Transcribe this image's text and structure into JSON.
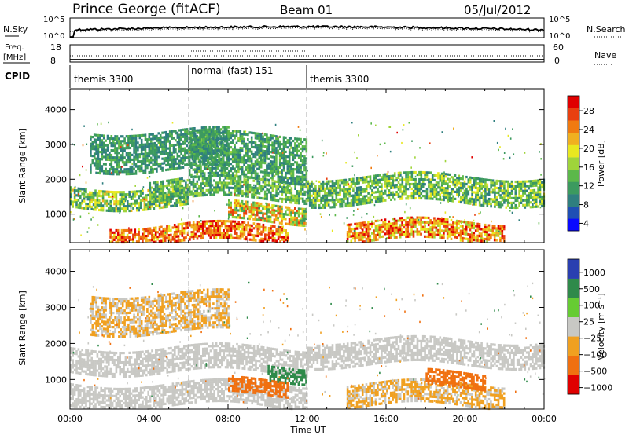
{
  "header": {
    "station": "Prince George (fitACF)",
    "beam": "Beam 01",
    "date": "05/Jul/2012"
  },
  "top_panel": {
    "left_label": "N.Sky",
    "right_label": "N.Search",
    "y_top_tick": "10^5",
    "y_bottom_tick": "10^0"
  },
  "freq_panel": {
    "left_label_1": "Freq.",
    "left_label_2": "[MHz]",
    "left_ticks": [
      "18",
      "8"
    ],
    "right_label": "Nave",
    "right_ticks": [
      "60",
      "0"
    ]
  },
  "cpid_panel": {
    "label": "CPID",
    "segments": [
      {
        "text": "themis 3300"
      },
      {
        "text": "normal (fast) 151"
      },
      {
        "text": "themis 3300"
      }
    ]
  },
  "x_axis": {
    "title": "Time UT",
    "ticks": [
      "00:00",
      "04:00",
      "08:00",
      "12:00",
      "16:00",
      "20:00",
      "00:00"
    ]
  },
  "power_panel": {
    "ylabel": "Slant Range [km]",
    "yticks": [
      "4000",
      "3000",
      "2000",
      "1000"
    ],
    "colorbar_label": "Power [dB]",
    "colorbar_ticks": [
      "28",
      "24",
      "20",
      "16",
      "12",
      "8",
      "4"
    ],
    "colors": [
      "#0a0aff",
      "#1f4fb4",
      "#2f7f7f",
      "#3c9a5f",
      "#5cb84a",
      "#9fd43a",
      "#e8e820",
      "#f0b020",
      "#f07a10",
      "#e84010",
      "#e00000"
    ]
  },
  "velocity_panel": {
    "ylabel": "Slant Range [km]",
    "yticks": [
      "4000",
      "3000",
      "2000",
      "1000"
    ],
    "colorbar_label": "Velocity [m s⁻¹]",
    "colorbar_ticks": [
      "1000",
      "500",
      "100",
      "25",
      "−25",
      "−100",
      "−500",
      "−1000"
    ],
    "colors": [
      "#2a3fb0",
      "#2f8a4a",
      "#66cc33",
      "#c8c8c4",
      "#f0a020",
      "#f07010",
      "#e00000"
    ]
  },
  "chart_data": [
    {
      "type": "heatmap",
      "title": "Power [dB]",
      "xlabel": "Time UT",
      "ylabel": "Slant Range [km]",
      "xlim": [
        0,
        24
      ],
      "ylim": [
        180,
        4600
      ],
      "clim": [
        0,
        30
      ],
      "bands": [
        {
          "t": [
            0,
            6
          ],
          "range": [
            1200,
            1800
          ],
          "power": [
            6,
            20
          ]
        },
        {
          "t": [
            4,
            12
          ],
          "range": [
            1400,
            2000
          ],
          "power": [
            6,
            16
          ]
        },
        {
          "t": [
            6,
            12
          ],
          "range": [
            2000,
            3300
          ],
          "power": [
            6,
            14
          ]
        },
        {
          "t": [
            2,
            11
          ],
          "range": [
            200,
            700
          ],
          "power": [
            18,
            30
          ]
        },
        {
          "t": [
            8,
            12
          ],
          "range": [
            800,
            1300
          ],
          "power": [
            8,
            26
          ]
        },
        {
          "t": [
            12,
            24
          ],
          "range": [
            1300,
            2100
          ],
          "power": [
            6,
            18
          ]
        },
        {
          "t": [
            14,
            22
          ],
          "range": [
            200,
            800
          ],
          "power": [
            14,
            30
          ]
        },
        {
          "t": [
            1,
            8
          ],
          "range": [
            2300,
            3400
          ],
          "power": [
            6,
            12
          ]
        }
      ]
    },
    {
      "type": "heatmap",
      "title": "Velocity",
      "xlabel": "Time UT",
      "ylabel": "Slant Range [km]",
      "xlim": [
        0,
        24
      ],
      "ylim": [
        180,
        4600
      ],
      "clim": [
        -1000,
        1000
      ],
      "bands": [
        {
          "t": [
            0,
            12
          ],
          "range": [
            1200,
            1900
          ],
          "velocity": [
            -25,
            25
          ]
        },
        {
          "t": [
            0,
            12
          ],
          "range": [
            300,
            900
          ],
          "velocity": [
            -25,
            25
          ]
        },
        {
          "t": [
            10,
            12
          ],
          "range": [
            1000,
            1400
          ],
          "velocity": [
            100,
            500
          ]
        },
        {
          "t": [
            12,
            24
          ],
          "range": [
            1400,
            2100
          ],
          "velocity": [
            -25,
            25
          ]
        },
        {
          "t": [
            14,
            22
          ],
          "range": [
            300,
            900
          ],
          "velocity": [
            -100,
            25
          ]
        },
        {
          "t": [
            8,
            11
          ],
          "range": [
            600,
            1000
          ],
          "velocity": [
            -500,
            -100
          ]
        },
        {
          "t": [
            18,
            21
          ],
          "range": [
            800,
            1200
          ],
          "velocity": [
            -500,
            -100
          ]
        },
        {
          "t": [
            1,
            8
          ],
          "range": [
            2300,
            3400
          ],
          "velocity": [
            -100,
            25
          ]
        }
      ]
    }
  ]
}
